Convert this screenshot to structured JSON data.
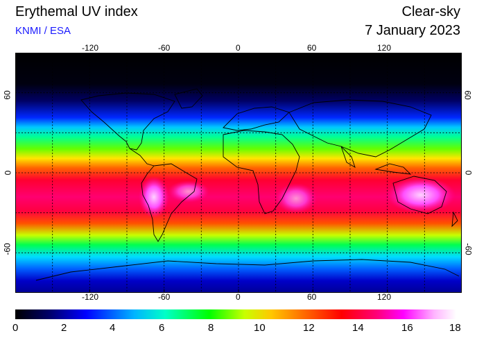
{
  "header": {
    "title": "Erythemal UV index",
    "organization": "KNMI / ESA",
    "sky_condition": "Clear-sky",
    "date": "7 January 2023"
  },
  "map": {
    "projection": "equirectangular",
    "lon_range": [
      -180,
      180
    ],
    "lat_range": [
      -90,
      90
    ],
    "gridlines_lon": [
      -150,
      -120,
      -90,
      -60,
      -30,
      0,
      30,
      60,
      90,
      120,
      150
    ],
    "gridlines_lat": [
      -60,
      -30,
      0,
      30,
      60
    ],
    "top_lon_labels": [
      "-120",
      "-60",
      "0",
      "60",
      "120"
    ],
    "bottom_lon_labels": [
      "-120",
      "-60",
      "0",
      "60",
      "120"
    ],
    "left_lat_labels": [
      "60",
      "0",
      "-60"
    ],
    "right_lat_labels": [
      "60",
      "0",
      "-60"
    ],
    "grid_style": "dotted"
  },
  "colorbar": {
    "ticks": [
      "0",
      "2",
      "4",
      "6",
      "8",
      "10",
      "12",
      "14",
      "16",
      "18"
    ],
    "range": [
      0,
      18
    ],
    "colors": [
      "#000000",
      "#00006e",
      "#0000ff",
      "#00b4ff",
      "#00ffc8",
      "#00ff00",
      "#c8ff00",
      "#ffc800",
      "#ff6400",
      "#ff0000",
      "#ff0078",
      "#ff00ff",
      "#ffb4ff",
      "#ffffff"
    ]
  }
}
